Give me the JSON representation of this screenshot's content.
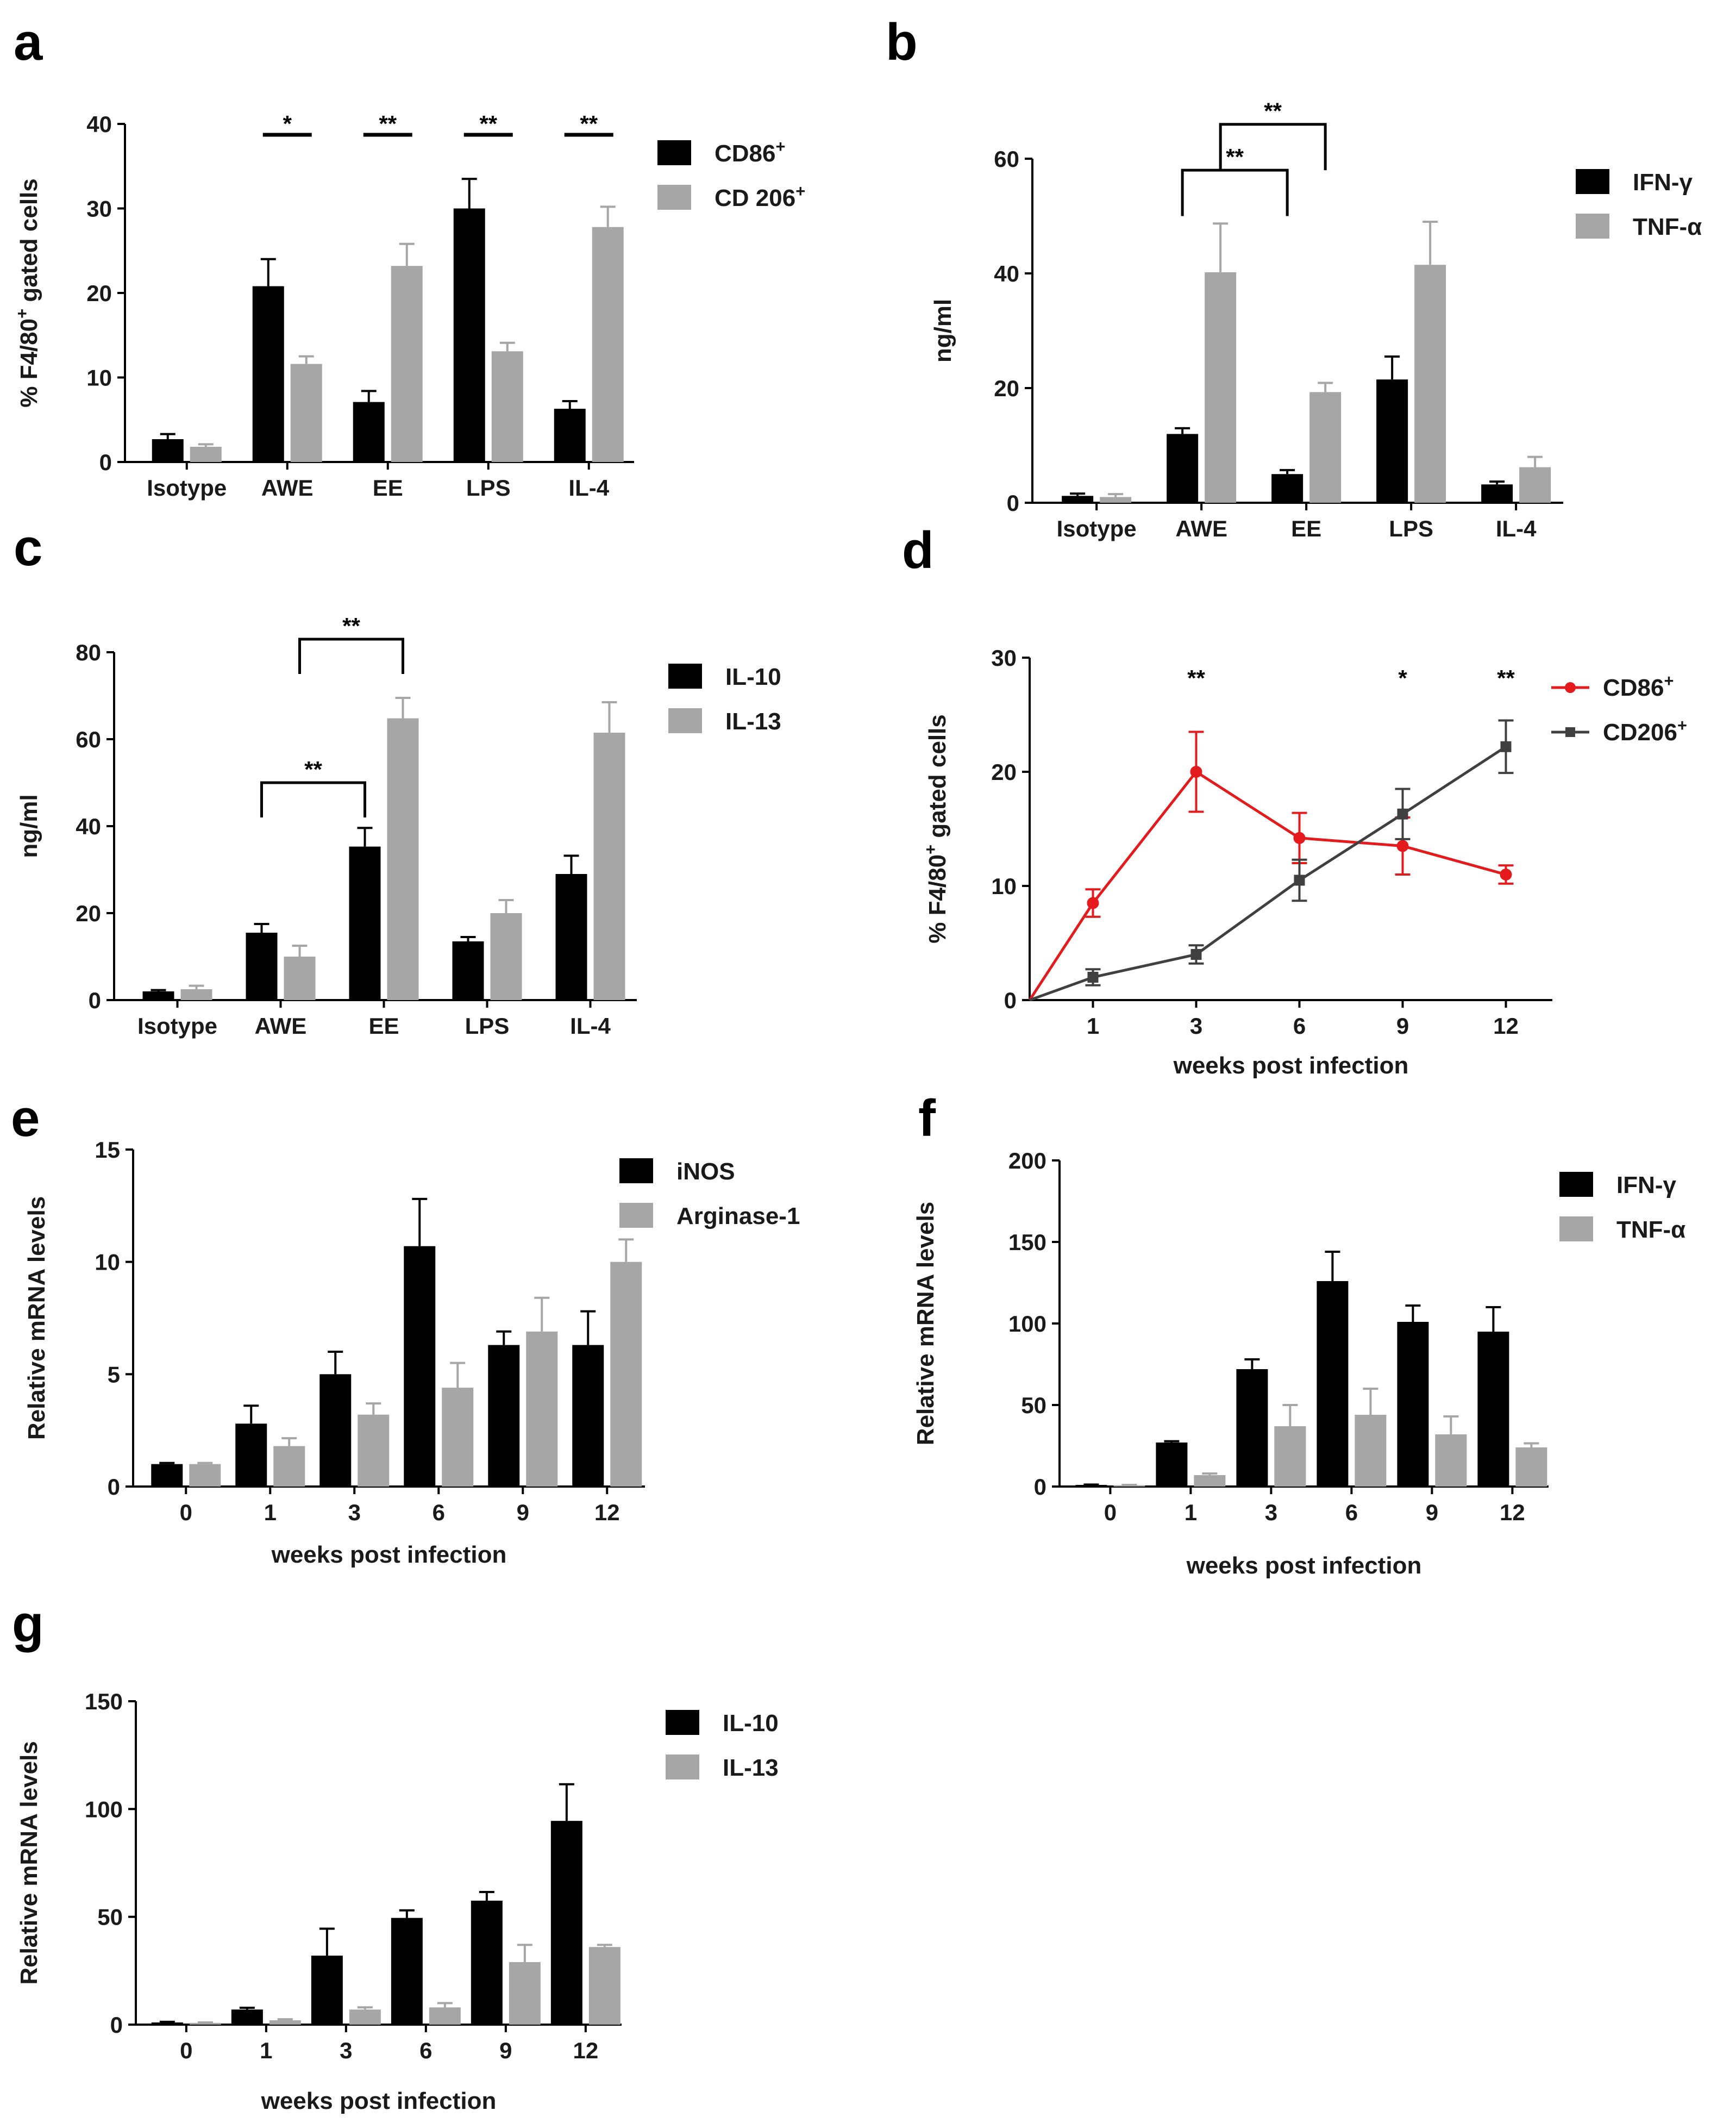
{
  "chart_data": [
    {
      "id": "a",
      "panel_label": "a",
      "type": "bar",
      "categories": [
        "Isotype",
        "AWE",
        "EE",
        "LPS",
        "IL-4"
      ],
      "series": [
        {
          "name": "CD86",
          "sup": "+",
          "color": "#000000",
          "values": [
            2.7,
            20.8,
            7.1,
            30.0,
            6.3
          ],
          "errors": [
            0.6,
            3.2,
            1.3,
            3.5,
            0.9
          ]
        },
        {
          "name": "CD 206",
          "sup": "+",
          "color": "#a6a6a6",
          "values": [
            1.8,
            11.6,
            23.2,
            13.1,
            27.8
          ],
          "errors": [
            0.3,
            0.9,
            2.6,
            1.0,
            2.4
          ]
        }
      ],
      "ylabel": "% F4/80",
      "ylabel_sup": "+",
      "ylabel_suffix": " gated cells",
      "xlabel": "",
      "ylim": [
        0,
        40
      ],
      "yticks": [
        "0",
        "10",
        "20",
        "30",
        "40"
      ],
      "legend_position": "right",
      "significance": [
        {
          "category": "AWE",
          "label": "*"
        },
        {
          "category": "EE",
          "label": "**"
        },
        {
          "category": "LPS",
          "label": "**"
        },
        {
          "category": "IL-4",
          "label": "**"
        }
      ]
    },
    {
      "id": "b",
      "panel_label": "b",
      "type": "bar",
      "categories": [
        "Isotype",
        "AWE",
        "EE",
        "LPS",
        "IL-4"
      ],
      "series": [
        {
          "name": "IFN-γ",
          "color": "#000000",
          "values": [
            1.2,
            12.0,
            5.0,
            21.5,
            3.2
          ],
          "errors": [
            0.4,
            1.0,
            0.7,
            4.0,
            0.5
          ]
        },
        {
          "name": "TNF-α",
          "color": "#a6a6a6",
          "values": [
            1.0,
            40.2,
            19.3,
            41.5,
            6.2
          ],
          "errors": [
            0.5,
            8.5,
            1.6,
            7.5,
            1.8
          ]
        }
      ],
      "ylabel": "ng/ml",
      "xlabel": "",
      "ylim": [
        0,
        60
      ],
      "yticks": [
        "0",
        "20",
        "40",
        "60"
      ],
      "legend_position": "right",
      "brackets": [
        {
          "from": [
            "AWE",
            0
          ],
          "to": [
            "EE",
            0
          ],
          "level": 58,
          "height": 8,
          "label": "**"
        },
        {
          "from": [
            "AWE",
            1
          ],
          "to": [
            "EE",
            1
          ],
          "level": 66,
          "height": 8,
          "label": "**"
        }
      ]
    },
    {
      "id": "c",
      "panel_label": "c",
      "type": "bar",
      "categories": [
        "Isotype",
        "AWE",
        "EE",
        "LPS",
        "IL-4"
      ],
      "series": [
        {
          "name": "IL-10",
          "color": "#000000",
          "values": [
            2.0,
            15.5,
            35.3,
            13.5,
            29.0
          ],
          "errors": [
            0.3,
            2.0,
            4.3,
            1.0,
            4.2
          ]
        },
        {
          "name": "IL-13",
          "color": "#a6a6a6",
          "values": [
            2.5,
            10.0,
            64.8,
            20.0,
            61.5
          ],
          "errors": [
            0.8,
            2.5,
            4.7,
            3.0,
            7.0
          ]
        }
      ],
      "ylabel": "ng/ml",
      "xlabel": "",
      "ylim": [
        0,
        80
      ],
      "yticks": [
        "0",
        "20",
        "40",
        "60",
        "80"
      ],
      "legend_position": "right",
      "brackets": [
        {
          "from": [
            "AWE",
            0
          ],
          "to": [
            "EE",
            0
          ],
          "level": 50,
          "height": 8,
          "label": "**"
        },
        {
          "from": [
            "AWE",
            1
          ],
          "to": [
            "EE",
            1
          ],
          "level": 83,
          "height": 8,
          "label": "**"
        }
      ]
    },
    {
      "id": "d",
      "panel_label": "d",
      "type": "line",
      "categories": [
        "1",
        "3",
        "6",
        "9",
        "12"
      ],
      "series": [
        {
          "name": "CD86",
          "sup": "+",
          "color": "#e41a1c",
          "marker": "circle",
          "values": [
            8.5,
            20.0,
            14.2,
            13.5,
            11.0
          ],
          "errors": [
            1.2,
            3.5,
            2.2,
            2.5,
            0.8
          ]
        },
        {
          "name": "CD206",
          "sup": "+",
          "color": "#404040",
          "marker": "square",
          "values": [
            2.0,
            4.0,
            10.5,
            16.3,
            22.2
          ],
          "errors": [
            0.7,
            0.8,
            1.8,
            2.2,
            2.3
          ]
        }
      ],
      "ylabel": "% F4/80",
      "ylabel_sup": "+",
      "ylabel_suffix": " gated cells",
      "xlabel": "weeks post infection",
      "ylim": [
        0,
        30
      ],
      "yticks": [
        "0",
        "10",
        "20",
        "30"
      ],
      "legend_position": "right",
      "significance": [
        {
          "category": "3",
          "label": "**"
        },
        {
          "category": "9",
          "label": "*"
        },
        {
          "category": "12",
          "label": "**"
        }
      ]
    },
    {
      "id": "e",
      "panel_label": "e",
      "type": "bar",
      "categories": [
        "0",
        "1",
        "3",
        "6",
        "9",
        "12"
      ],
      "series": [
        {
          "name": "iNOS",
          "color": "#000000",
          "values": [
            1.0,
            2.8,
            5.0,
            10.7,
            6.3,
            6.3
          ],
          "errors": [
            0.05,
            0.8,
            1.0,
            2.1,
            0.6,
            1.5
          ]
        },
        {
          "name": "Arginase-1",
          "color": "#a6a6a6",
          "values": [
            1.0,
            1.8,
            3.2,
            4.4,
            6.9,
            10.0
          ],
          "errors": [
            0.05,
            0.35,
            0.5,
            1.1,
            1.5,
            1.0
          ]
        }
      ],
      "ylabel": "Relative mRNA levels",
      "xlabel": "weeks post infection",
      "ylim": [
        0,
        15
      ],
      "yticks": [
        "0",
        "5",
        "10",
        "15"
      ],
      "legend_position": "right"
    },
    {
      "id": "f",
      "panel_label": "f",
      "type": "bar",
      "categories": [
        "0",
        "1",
        "3",
        "6",
        "9",
        "12"
      ],
      "series": [
        {
          "name": "IFN-γ",
          "color": "#000000",
          "values": [
            1.0,
            27.0,
            72.0,
            126.0,
            101.0,
            95.0
          ],
          "errors": [
            0.2,
            0.8,
            6.0,
            18.0,
            10.0,
            15.0
          ]
        },
        {
          "name": "TNF-α",
          "color": "#a6a6a6",
          "values": [
            0.8,
            7.0,
            37.0,
            44.0,
            32.0,
            24.0
          ],
          "errors": [
            0.2,
            1.0,
            13.0,
            16.0,
            11.0,
            2.5
          ]
        }
      ],
      "ylabel": "Relative mRNA levels",
      "xlabel": "weeks post infection",
      "ylim": [
        0,
        200
      ],
      "yticks": [
        "0",
        "50",
        "100",
        "150",
        "200"
      ],
      "legend_position": "right"
    },
    {
      "id": "g",
      "panel_label": "g",
      "type": "bar",
      "categories": [
        "0",
        "1",
        "3",
        "6",
        "9",
        "12"
      ],
      "series": [
        {
          "name": "IL-10",
          "color": "#000000",
          "values": [
            1.0,
            7.0,
            32.0,
            49.5,
            57.5,
            94.5
          ],
          "errors": [
            0.3,
            0.8,
            12.5,
            3.5,
            4.0,
            17.0
          ]
        },
        {
          "name": "IL-13",
          "color": "#a6a6a6",
          "values": [
            0.8,
            2.0,
            7.0,
            8.0,
            29.0,
            36.0
          ],
          "errors": [
            0.2,
            0.5,
            1.0,
            2.0,
            8.0,
            1.0
          ]
        }
      ],
      "ylabel": "Relative mRNA levels",
      "xlabel": "weeks post infection",
      "ylim": [
        0,
        150
      ],
      "yticks": [
        "0",
        "50",
        "100",
        "150"
      ],
      "legend_position": "right"
    }
  ]
}
